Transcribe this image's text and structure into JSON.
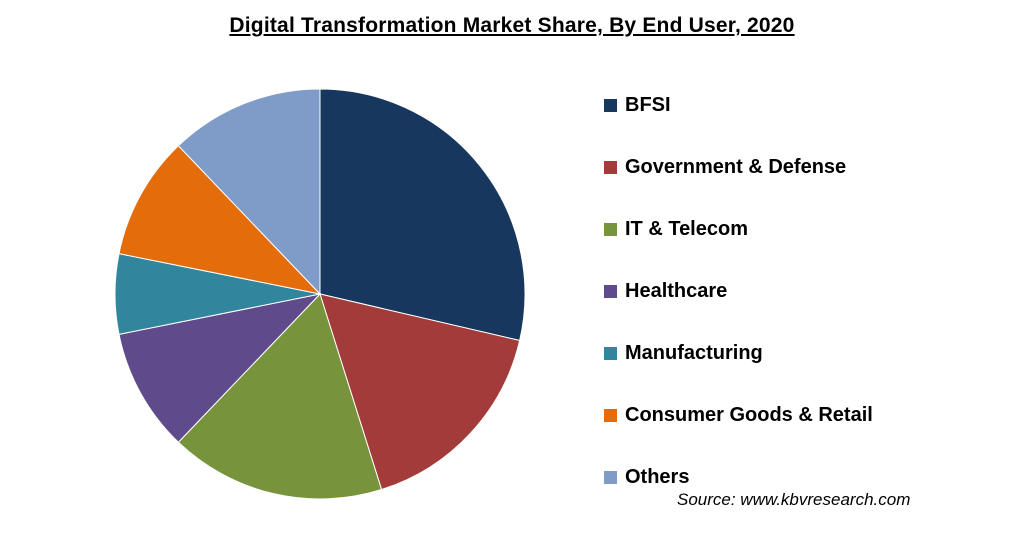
{
  "chart_data": {
    "type": "pie",
    "title": "Digital Transformation Market Share, By End User, 2020",
    "slices": [
      {
        "label": "BFSI",
        "value": 29.5,
        "color": "#17375e"
      },
      {
        "label": "Government & Defense",
        "value": 17.0,
        "color": "#a33b3b"
      },
      {
        "label": "IT & Telecom",
        "value": 17.5,
        "color": "#77933c"
      },
      {
        "label": "Healthcare",
        "value": 10.0,
        "color": "#5f4b8b"
      },
      {
        "label": "Manufacturing",
        "value": 6.5,
        "color": "#31859c"
      },
      {
        "label": "Consumer Goods & Retail",
        "value": 10.0,
        "color": "#e46c0a"
      },
      {
        "label": "Others",
        "value": 12.5,
        "color": "#7f9cc8"
      }
    ],
    "start_angle": "12 o'clock",
    "direction": "clockwise",
    "legend_position": "right"
  },
  "source": "Source: www.kbvresearch.com"
}
